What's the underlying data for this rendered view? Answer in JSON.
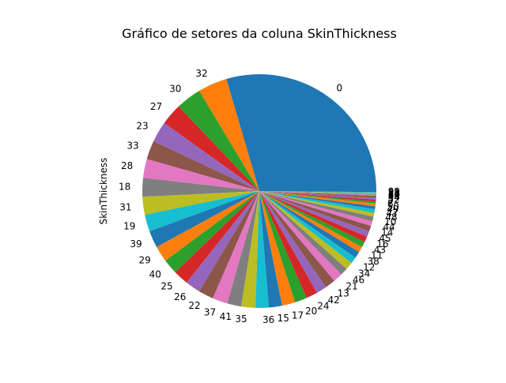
{
  "chart_data": {
    "type": "pie",
    "title": "Gráfico de setores da coluna SkinThickness",
    "ylabel": "SkinThickness",
    "xlabel": "",
    "counterclock": true,
    "start_angle_deg": 0,
    "categories": [
      "0",
      "32",
      "30",
      "27",
      "23",
      "33",
      "28",
      "18",
      "31",
      "19",
      "39",
      "29",
      "40",
      "25",
      "26",
      "22",
      "37",
      "41",
      "35",
      "36",
      "15",
      "17",
      "20",
      "24",
      "42",
      "13",
      "21",
      "46",
      "34",
      "12",
      "38",
      "11",
      "43",
      "16",
      "45",
      "14",
      "44",
      "10",
      "48",
      "47",
      "49",
      "50",
      "8",
      "7",
      "52",
      "54",
      "63",
      "60",
      "56",
      "51",
      "99"
    ],
    "values": [
      227,
      31,
      27,
      23,
      22,
      20,
      20,
      20,
      19,
      18,
      18,
      17,
      16,
      16,
      16,
      16,
      16,
      15,
      15,
      14,
      14,
      14,
      13,
      12,
      11,
      11,
      10,
      8,
      8,
      7,
      7,
      6,
      6,
      6,
      6,
      6,
      5,
      5,
      4,
      4,
      3,
      3,
      2,
      2,
      2,
      2,
      1,
      1,
      1,
      1,
      1
    ],
    "colors": [
      "#1f77b4",
      "#ff7f0e",
      "#2ca02c",
      "#d62728",
      "#9467bd",
      "#8c564b",
      "#e377c2",
      "#7f7f7f",
      "#bcbd22",
      "#17becf"
    ]
  }
}
